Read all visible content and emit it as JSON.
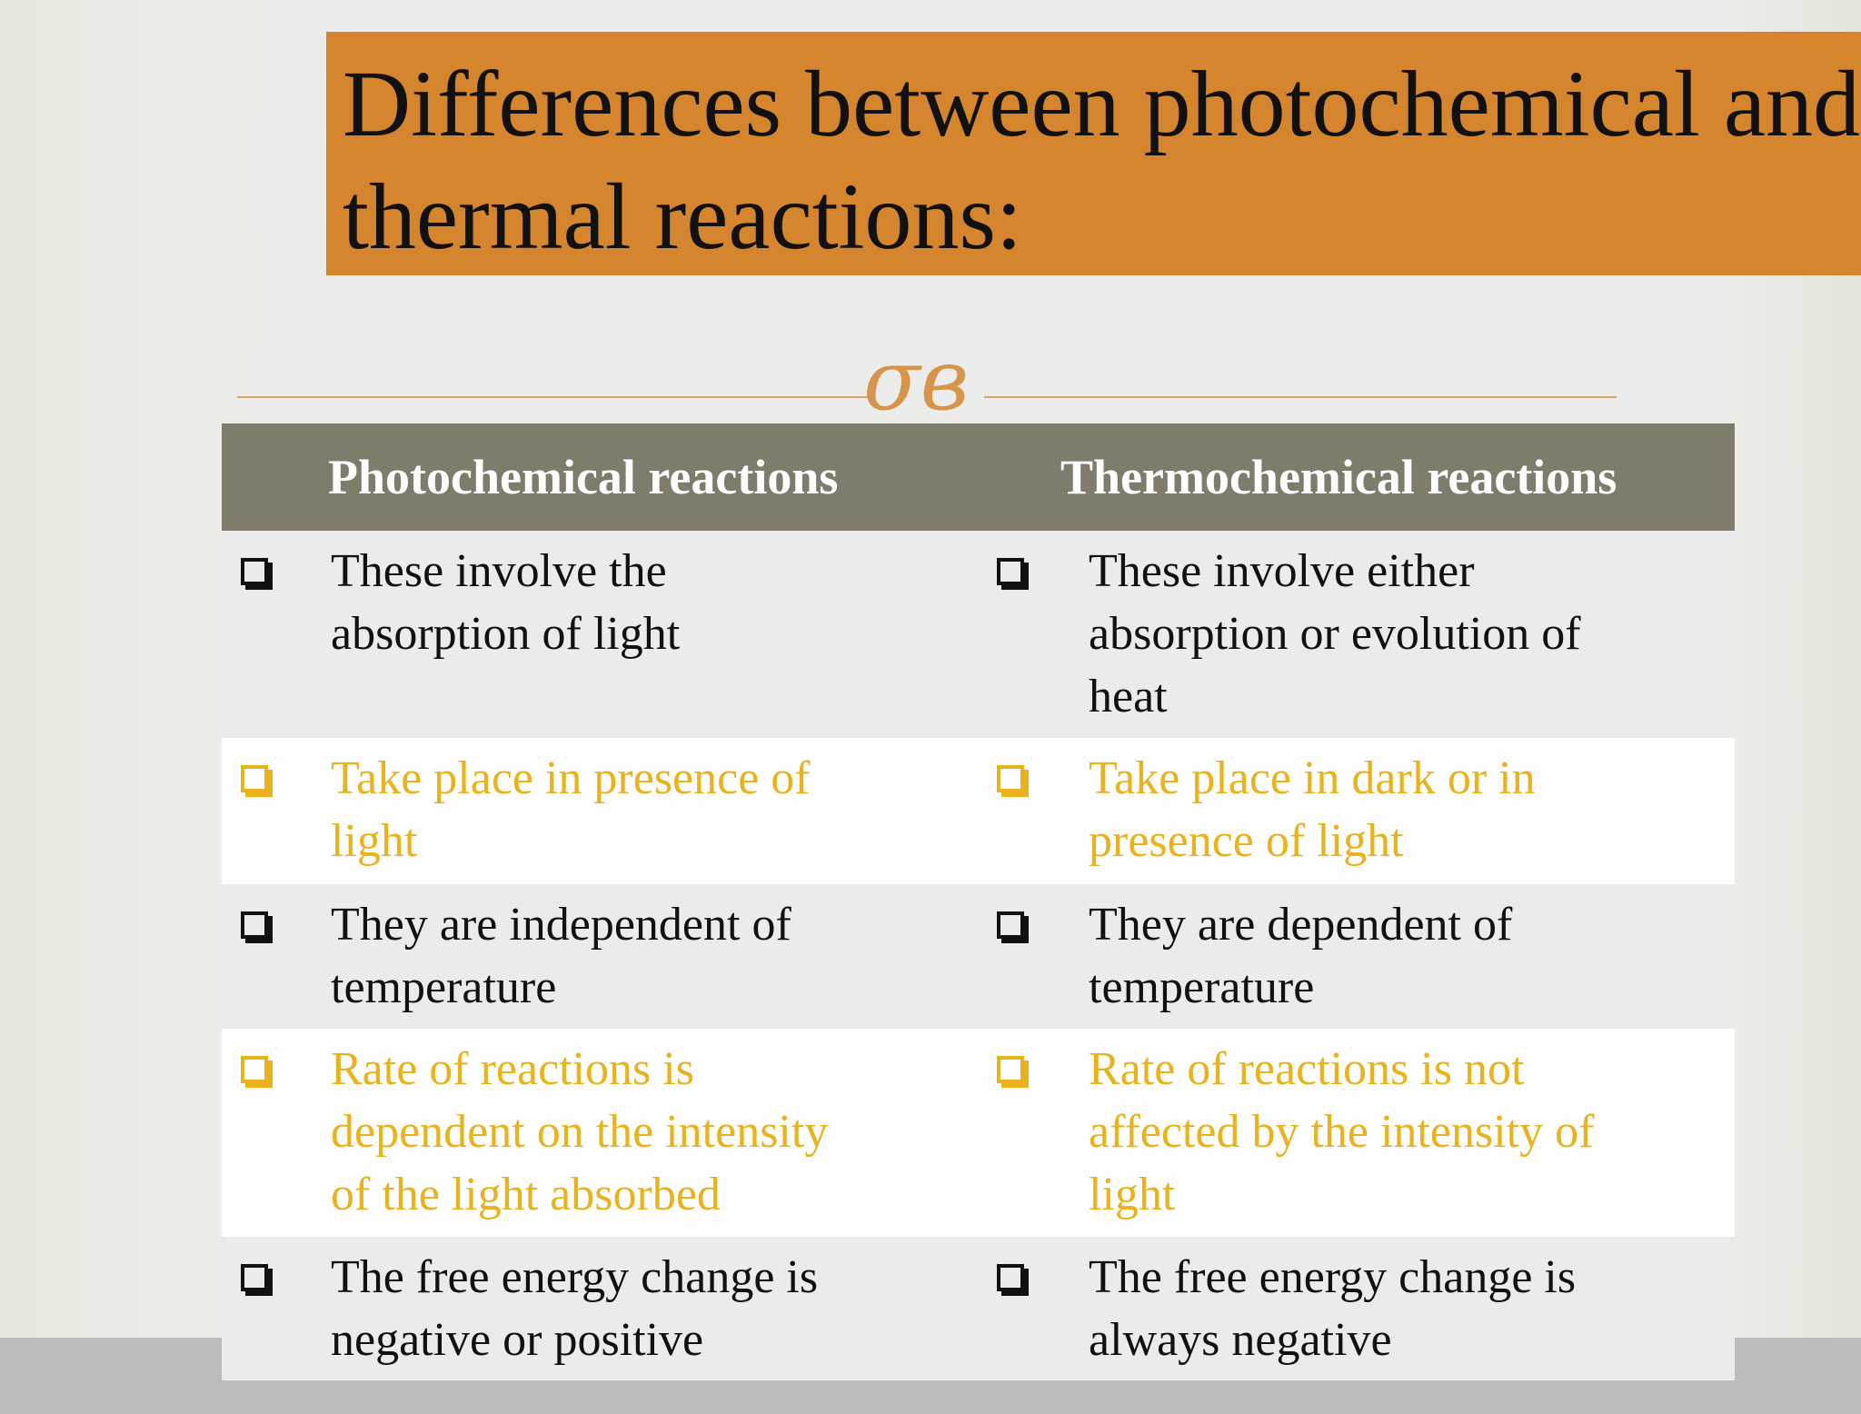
{
  "title": "Differences between photochemical and thermal reactions:",
  "table": {
    "header": [
      "Photochemical reactions",
      "Thermochemical reactions"
    ],
    "rows": [
      [
        "These involve the absorption of light",
        "These involve either absorption or evolution of heat"
      ],
      [
        "Take place in presence of light",
        "Take place in dark or in presence of light"
      ],
      [
        "They are independent of temperature",
        "They are dependent of temperature"
      ],
      [
        "Rate of reactions is dependent on the intensity of the light absorbed",
        "Rate of reactions is not affected by the intensity of light"
      ],
      [
        "The free energy change is negative or positive",
        "The free energy change is always negative"
      ]
    ]
  }
}
